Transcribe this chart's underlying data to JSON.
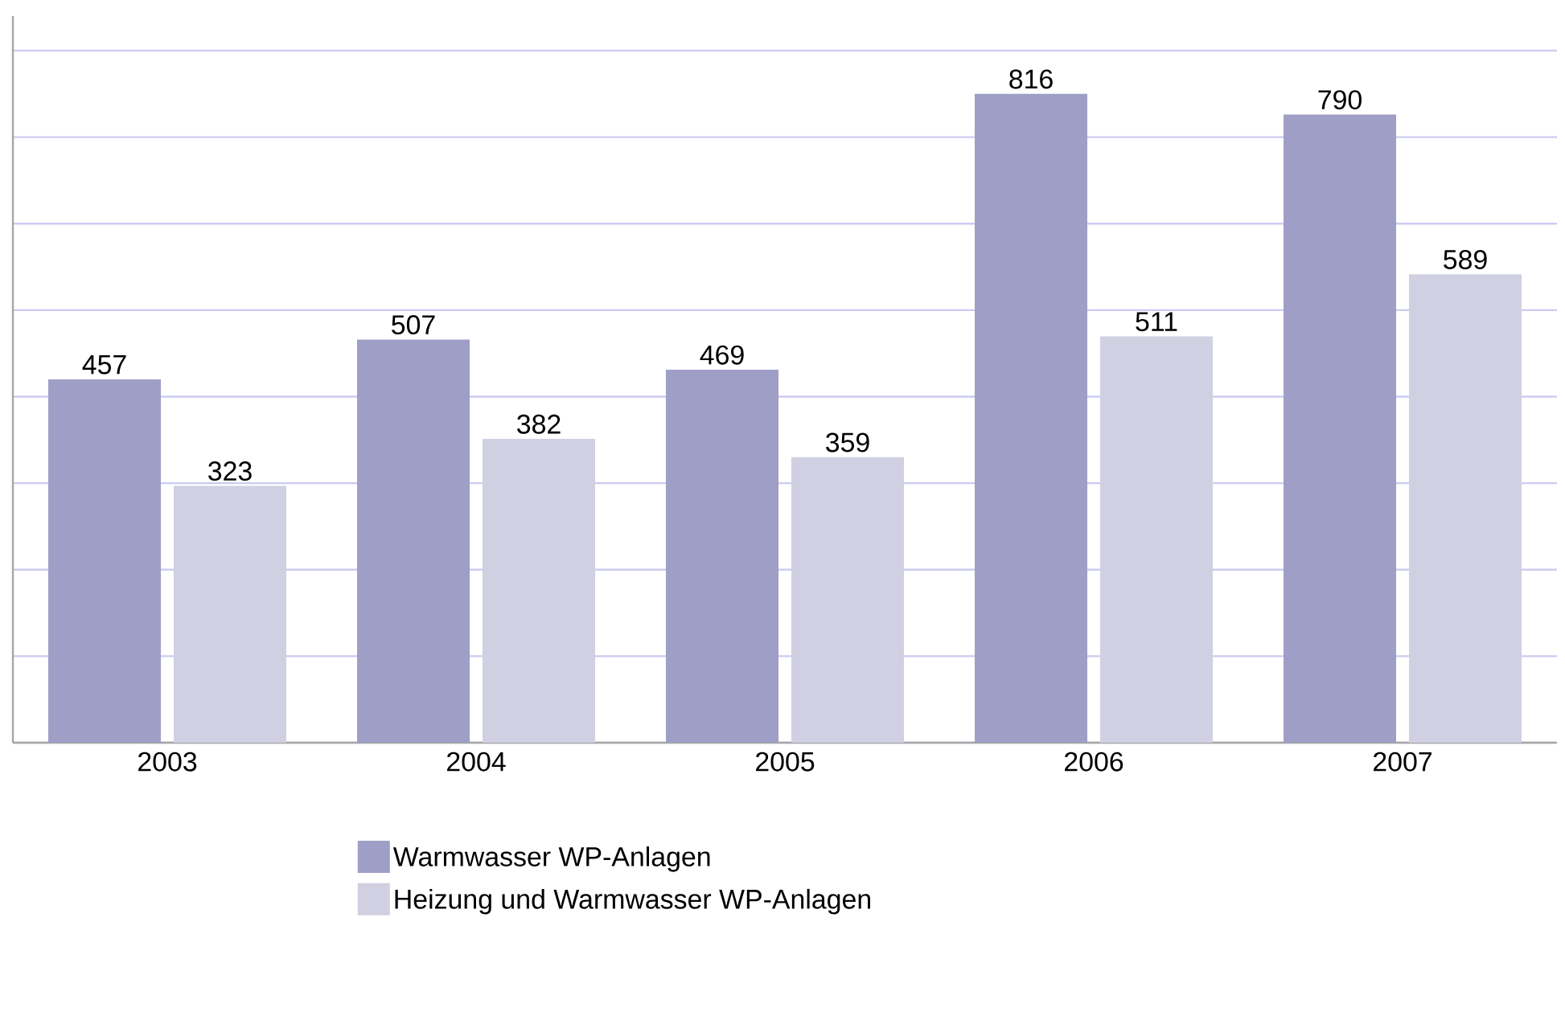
{
  "chart_data": {
    "type": "bar",
    "categories": [
      "2003",
      "2004",
      "2005",
      "2006",
      "2007"
    ],
    "series": [
      {
        "name": "Warmwasser WP-Anlagen",
        "color": "#9e9ec6",
        "values": [
          457,
          507,
          469,
          816,
          790
        ]
      },
      {
        "name": "Heizung und Warmwasser WP-Anlagen",
        "color": "#d0d0e2",
        "values": [
          323,
          382,
          359,
          511,
          589
        ]
      }
    ],
    "data_labels": true,
    "grid": "y",
    "legend": "bottom",
    "tick_labels": "x"
  }
}
